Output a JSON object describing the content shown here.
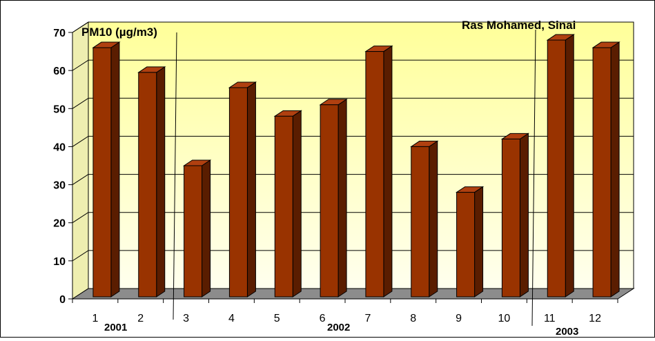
{
  "chart_data": {
    "type": "bar",
    "title": "PM10 (µg/m3)",
    "site": "Ras Mohamed, Sinai",
    "categories": [
      "1",
      "2",
      "3",
      "4",
      "5",
      "6",
      "7",
      "8",
      "9",
      "10",
      "11",
      "12"
    ],
    "values": [
      66,
      59.5,
      35,
      55.5,
      48,
      51,
      65,
      40,
      28,
      42,
      68,
      66
    ],
    "yticks": [
      "0",
      "10",
      "20",
      "30",
      "40",
      "50",
      "60",
      "70"
    ],
    "ylim": [
      0,
      70
    ],
    "year_labels": [
      "2001",
      "2002",
      "2003"
    ],
    "grid": true,
    "colors": {
      "bar_front": "#993300",
      "bar_side": "#5a1d00",
      "bar_top": "#b04010",
      "wall_top": "#ffff99",
      "wall_bottom": "#ffffee",
      "floor": "#8c8c8c",
      "gridline": "#000000"
    }
  }
}
